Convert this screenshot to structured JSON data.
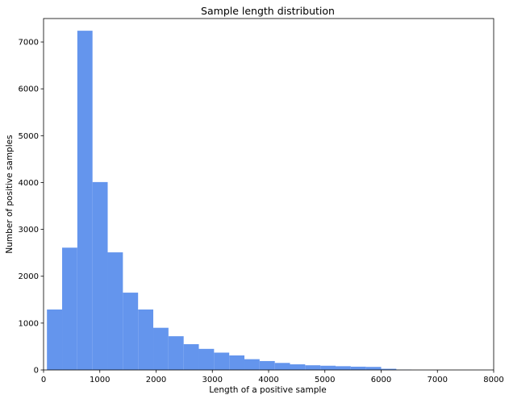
{
  "chart_data": {
    "type": "bar",
    "title": "Sample length distribution",
    "xlabel": "Length of a positive sample",
    "ylabel": "Number of positive samples",
    "xlim": [
      0,
      8000
    ],
    "ylim": [
      0,
      7500
    ],
    "x_ticks": [
      0,
      1000,
      2000,
      3000,
      4000,
      5000,
      6000,
      7000,
      8000
    ],
    "y_ticks": [
      0,
      1000,
      2000,
      3000,
      4000,
      5000,
      6000,
      7000
    ],
    "bar_color": "#6495ed",
    "bins": [
      {
        "start": 60,
        "end": 330,
        "count": 1290
      },
      {
        "start": 330,
        "end": 600,
        "count": 2610
      },
      {
        "start": 600,
        "end": 870,
        "count": 7240
      },
      {
        "start": 870,
        "end": 1140,
        "count": 4010
      },
      {
        "start": 1140,
        "end": 1410,
        "count": 2510
      },
      {
        "start": 1410,
        "end": 1680,
        "count": 1650
      },
      {
        "start": 1680,
        "end": 1950,
        "count": 1290
      },
      {
        "start": 1950,
        "end": 2220,
        "count": 900
      },
      {
        "start": 2220,
        "end": 2490,
        "count": 720
      },
      {
        "start": 2490,
        "end": 2760,
        "count": 550
      },
      {
        "start": 2760,
        "end": 3030,
        "count": 450
      },
      {
        "start": 3030,
        "end": 3300,
        "count": 370
      },
      {
        "start": 3300,
        "end": 3570,
        "count": 310
      },
      {
        "start": 3570,
        "end": 3840,
        "count": 230
      },
      {
        "start": 3840,
        "end": 4110,
        "count": 190
      },
      {
        "start": 4110,
        "end": 4380,
        "count": 150
      },
      {
        "start": 4380,
        "end": 4650,
        "count": 120
      },
      {
        "start": 4650,
        "end": 4920,
        "count": 100
      },
      {
        "start": 4920,
        "end": 5190,
        "count": 90
      },
      {
        "start": 5190,
        "end": 5460,
        "count": 80
      },
      {
        "start": 5460,
        "end": 5730,
        "count": 70
      },
      {
        "start": 5730,
        "end": 6000,
        "count": 65
      },
      {
        "start": 6000,
        "end": 6270,
        "count": 25
      },
      {
        "start": 6270,
        "end": 6540,
        "count": 5
      }
    ]
  }
}
